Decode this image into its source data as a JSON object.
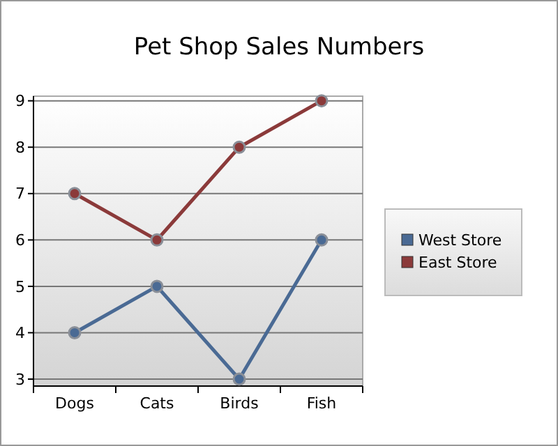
{
  "chart_data": {
    "type": "line",
    "title": "Pet Shop Sales Numbers",
    "categories": [
      "Dogs",
      "Cats",
      "Birds",
      "Fish"
    ],
    "series": [
      {
        "name": "West Store",
        "color": "#4a6a94",
        "values": [
          4,
          5,
          3,
          6
        ]
      },
      {
        "name": "East Store",
        "color": "#8b3a3a",
        "values": [
          7,
          6,
          8,
          9
        ]
      }
    ],
    "ylim": [
      2.85,
      9.1
    ],
    "yticks": [
      3,
      4,
      5,
      6,
      7,
      8,
      9
    ],
    "grid": "y",
    "legend": "right",
    "marker": "circle"
  }
}
